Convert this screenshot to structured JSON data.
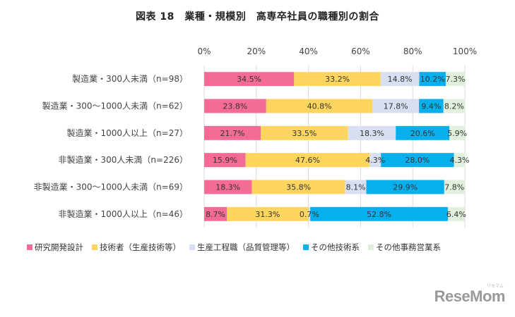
{
  "chart_data": {
    "type": "bar",
    "orientation": "horizontal",
    "stacked": true,
    "title": "図表 18　業種・規模別　高専卒社員の職種別の割合",
    "categories": [
      "製造業・300人未満（n=98）",
      "製造業・300～1000人未満（n=62）",
      "製造業・1000人以上（n=27）",
      "非製造業・300人未満（n=226）",
      "非製造業・300～1000人未満（n=69）",
      "非製造業・1000人以上（n=46）"
    ],
    "series": [
      {
        "name": "研究開発設計",
        "color": "#f46c96",
        "values": [
          34.5,
          23.8,
          21.7,
          15.9,
          18.3,
          8.7
        ]
      },
      {
        "name": "技術者（生産技術等）",
        "color": "#fed55e",
        "values": [
          33.2,
          40.8,
          33.5,
          47.6,
          35.8,
          31.3
        ]
      },
      {
        "name": "生産工程職（品質管理等）",
        "color": "#d8dff0",
        "values": [
          14.8,
          17.8,
          18.3,
          4.3,
          8.1,
          0.7
        ]
      },
      {
        "name": "その他技術系",
        "color": "#07b0ec",
        "values": [
          10.2,
          9.4,
          20.6,
          28.0,
          29.9,
          52.8
        ]
      },
      {
        "name": "その他事務営業系",
        "color": "#e0f0dc",
        "values": [
          7.3,
          8.2,
          5.9,
          4.3,
          7.8,
          6.4
        ]
      }
    ],
    "x_ticks": [
      "0%",
      "20%",
      "40%",
      "60%",
      "80%",
      "100%"
    ],
    "xlim": [
      0,
      100
    ],
    "grid": true,
    "legend_position": "bottom-left"
  },
  "branding": {
    "logo_text": "ReseMom",
    "logo_sub": "リセマム"
  }
}
